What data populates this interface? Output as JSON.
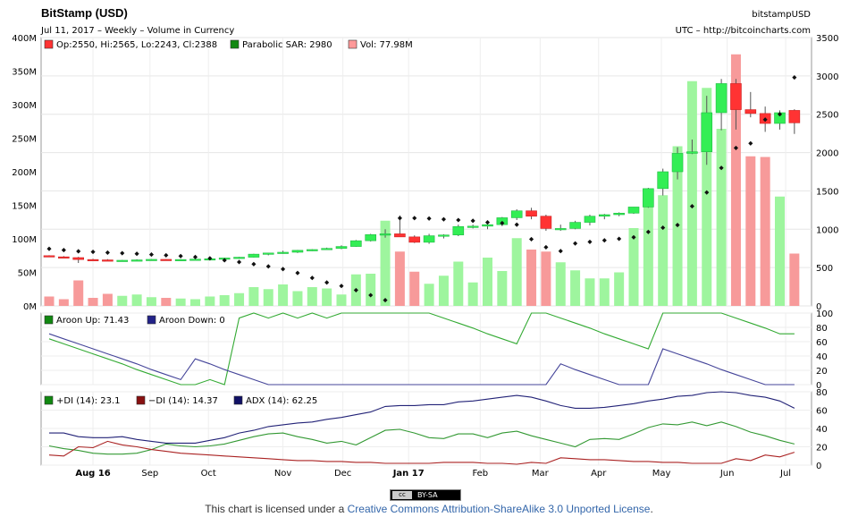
{
  "header": {
    "title": "BitStamp (USD)",
    "subtitle": "Jul 11, 2017 – Weekly – Volume in Currency",
    "right_title": "bitstampUSD",
    "right_sub": "UTC – http://bitcoincharts.com"
  },
  "footer": {
    "badge_left": "cc",
    "badge_right": "BY-SA",
    "text_before": "This chart is licensed under a ",
    "link": "Creative Commons Attribution-ShareAlike 3.0 Unported License",
    "text_after": "."
  },
  "chart_data": [
    {
      "type": "candlestick",
      "legend": [
        {
          "label": "Op:2550, Hi:2565, Lo:2243, Cl:2388",
          "color": "#ff3333"
        },
        {
          "label": "Parabolic SAR: 2980",
          "color": "#118811"
        },
        {
          "label": "Vol: 77.98M",
          "color": "#ff9999"
        }
      ],
      "x_ticks": [
        "Aug 16",
        "Sep",
        "Oct",
        "Nov",
        "Dec",
        "Jan 17",
        "Feb",
        "Mar",
        "Apr",
        "May",
        "Jun",
        "Jul"
      ],
      "price_axis": {
        "ticks": [
          0,
          500,
          1000,
          1500,
          2000,
          2500,
          3000,
          3500
        ],
        "ylim": [
          0,
          3500
        ]
      },
      "volume_axis": {
        "ticks": [
          "0M",
          "50M",
          "100M",
          "150M",
          "200M",
          "250M",
          "300M",
          "350M",
          "400M"
        ],
        "ylim": [
          0,
          400
        ]
      },
      "candles": [
        [
          655,
          660,
          640,
          640
        ],
        [
          640,
          650,
          630,
          630
        ],
        [
          630,
          640,
          560,
          605
        ],
        [
          605,
          615,
          590,
          600
        ],
        [
          600,
          610,
          585,
          590
        ],
        [
          590,
          600,
          580,
          595
        ],
        [
          595,
          608,
          585,
          600
        ],
        [
          600,
          612,
          590,
          607
        ],
        [
          607,
          612,
          595,
          603
        ],
        [
          603,
          610,
          598,
          605
        ],
        [
          605,
          612,
          595,
          610
        ],
        [
          610,
          625,
          600,
          615
        ],
        [
          615,
          628,
          605,
          625
        ],
        [
          625,
          640,
          615,
          635
        ],
        [
          635,
          680,
          630,
          675
        ],
        [
          675,
          690,
          660,
          690
        ],
        [
          690,
          720,
          680,
          700
        ],
        [
          700,
          730,
          690,
          725
        ],
        [
          725,
          740,
          715,
          735
        ],
        [
          735,
          760,
          730,
          750
        ],
        [
          750,
          790,
          740,
          775
        ],
        [
          775,
          860,
          770,
          850
        ],
        [
          850,
          940,
          840,
          930
        ],
        [
          930,
          1000,
          890,
          940
        ],
        [
          940,
          1180,
          920,
          900
        ],
        [
          900,
          920,
          820,
          830
        ],
        [
          830,
          940,
          810,
          915
        ],
        [
          915,
          935,
          880,
          925
        ],
        [
          925,
          1060,
          910,
          1035
        ],
        [
          1035,
          1060,
          1010,
          1040
        ],
        [
          1040,
          1090,
          1000,
          1060
        ],
        [
          1060,
          1160,
          1040,
          1150
        ],
        [
          1150,
          1260,
          1120,
          1240
        ],
        [
          1240,
          1280,
          1130,
          1170
        ],
        [
          1170,
          1190,
          980,
          1010
        ],
        [
          1010,
          1060,
          980,
          1010
        ],
        [
          1010,
          1110,
          1000,
          1090
        ],
        [
          1090,
          1190,
          1050,
          1170
        ],
        [
          1170,
          1200,
          1130,
          1190
        ],
        [
          1190,
          1220,
          1170,
          1210
        ],
        [
          1210,
          1290,
          1200,
          1290
        ],
        [
          1290,
          1540,
          1280,
          1530
        ],
        [
          1530,
          1790,
          1440,
          1750
        ],
        [
          1750,
          2070,
          1650,
          1990
        ],
        [
          1990,
          2170,
          1980,
          2010
        ],
        [
          2010,
          2740,
          1840,
          2520
        ],
        [
          2520,
          2960,
          2290,
          2900
        ],
        [
          2900,
          2960,
          2300,
          2560
        ],
        [
          2560,
          2790,
          2460,
          2510
        ],
        [
          2510,
          2600,
          2270,
          2380
        ],
        [
          2380,
          2550,
          2300,
          2520
        ],
        [
          2550,
          2565,
          2243,
          2388
        ]
      ],
      "sar": [
        745,
        728,
        712,
        705,
        695,
        688,
        680,
        670,
        660,
        650,
        638,
        620,
        595,
        572,
        545,
        515,
        480,
        430,
        365,
        305,
        260,
        205,
        140,
        75,
        1145,
        1145,
        1140,
        1130,
        1120,
        1110,
        1090,
        1080,
        1060,
        870,
        765,
        715,
        815,
        835,
        855,
        875,
        895,
        965,
        1020,
        1055,
        1300,
        1480,
        1800,
        2060,
        2120,
        2430,
        2500,
        2980
      ],
      "volume_M": [
        14,
        10,
        38,
        12,
        18,
        15,
        17,
        13,
        12,
        11,
        10,
        14,
        16,
        19,
        28,
        25,
        32,
        22,
        28,
        26,
        17,
        47,
        48,
        127,
        81,
        51,
        33,
        45,
        66,
        35,
        72,
        52,
        101,
        84,
        81,
        65,
        53,
        41,
        41,
        50,
        116,
        165,
        165,
        238,
        335,
        325,
        264,
        375,
        223,
        222,
        163,
        78
      ]
    },
    {
      "type": "line",
      "legend": [
        {
          "label": "Aroon Up: 71.43",
          "color": "#118811"
        },
        {
          "label": "Aroon Down: 0",
          "color": "#222288"
        }
      ],
      "ylim": [
        0,
        100
      ],
      "y_ticks": [
        0,
        20,
        40,
        60,
        80,
        100
      ],
      "series": [
        {
          "name": "Aroon Up",
          "color": "#33aa33",
          "values": [
            64,
            57,
            50,
            43,
            36,
            29,
            21,
            14,
            7,
            0,
            0,
            7,
            0,
            93,
            100,
            93,
            100,
            93,
            100,
            93,
            100,
            100,
            100,
            100,
            100,
            100,
            100,
            93,
            86,
            79,
            71,
            64,
            57,
            100,
            100,
            93,
            86,
            79,
            71,
            64,
            57,
            50,
            100,
            100,
            100,
            100,
            100,
            93,
            86,
            79,
            71,
            71
          ]
        },
        {
          "name": "Aroon Down",
          "color": "#444499",
          "values": [
            71,
            64,
            57,
            50,
            43,
            36,
            29,
            21,
            14,
            7,
            36,
            29,
            21,
            14,
            7,
            0,
            0,
            0,
            0,
            0,
            0,
            0,
            0,
            0,
            0,
            0,
            0,
            0,
            0,
            0,
            0,
            0,
            0,
            0,
            0,
            29,
            21,
            14,
            7,
            0,
            0,
            0,
            50,
            43,
            36,
            29,
            21,
            14,
            7,
            0,
            0,
            0
          ]
        }
      ]
    },
    {
      "type": "line",
      "legend": [
        {
          "label": "+DI (14): 23.1",
          "color": "#118811"
        },
        {
          "label": "−DI (14): 14.37",
          "color": "#881111"
        },
        {
          "label": "ADX (14): 62.25",
          "color": "#111166"
        }
      ],
      "ylim": [
        0,
        80
      ],
      "y_ticks": [
        0,
        20,
        40,
        60,
        80
      ],
      "series": [
        {
          "name": "+DI (14)",
          "color": "#339933",
          "values": [
            21,
            18,
            16,
            13,
            12,
            12,
            13,
            17,
            23,
            21,
            20,
            21,
            23,
            27,
            31,
            34,
            35,
            31,
            28,
            24,
            26,
            22,
            30,
            38,
            39,
            35,
            30,
            29,
            34,
            34,
            30,
            35,
            37,
            32,
            28,
            24,
            20,
            28,
            29,
            28,
            34,
            41,
            45,
            44,
            47,
            43,
            47,
            42,
            36,
            32,
            27,
            23
          ]
        },
        {
          "name": "−DI (14)",
          "color": "#aa2222",
          "values": [
            11,
            10,
            20,
            19,
            26,
            22,
            20,
            17,
            15,
            13,
            12,
            11,
            10,
            9,
            8,
            7,
            6,
            5,
            5,
            4,
            4,
            3,
            3,
            2,
            2,
            2,
            2,
            3,
            3,
            3,
            2,
            2,
            1,
            3,
            2,
            8,
            7,
            6,
            6,
            5,
            4,
            4,
            3,
            3,
            2,
            2,
            2,
            7,
            5,
            11,
            9,
            14
          ]
        },
        {
          "name": "ADX (14)",
          "color": "#222277",
          "values": [
            35,
            35,
            31,
            30,
            30,
            31,
            28,
            26,
            24,
            24,
            24,
            27,
            30,
            35,
            38,
            42,
            44,
            46,
            47,
            50,
            52,
            55,
            58,
            64,
            65,
            65,
            66,
            66,
            69,
            70,
            72,
            74,
            76,
            74,
            70,
            65,
            62,
            62,
            63,
            65,
            67,
            70,
            72,
            75,
            76,
            79,
            80,
            79,
            76,
            74,
            70,
            62
          ]
        }
      ]
    }
  ]
}
